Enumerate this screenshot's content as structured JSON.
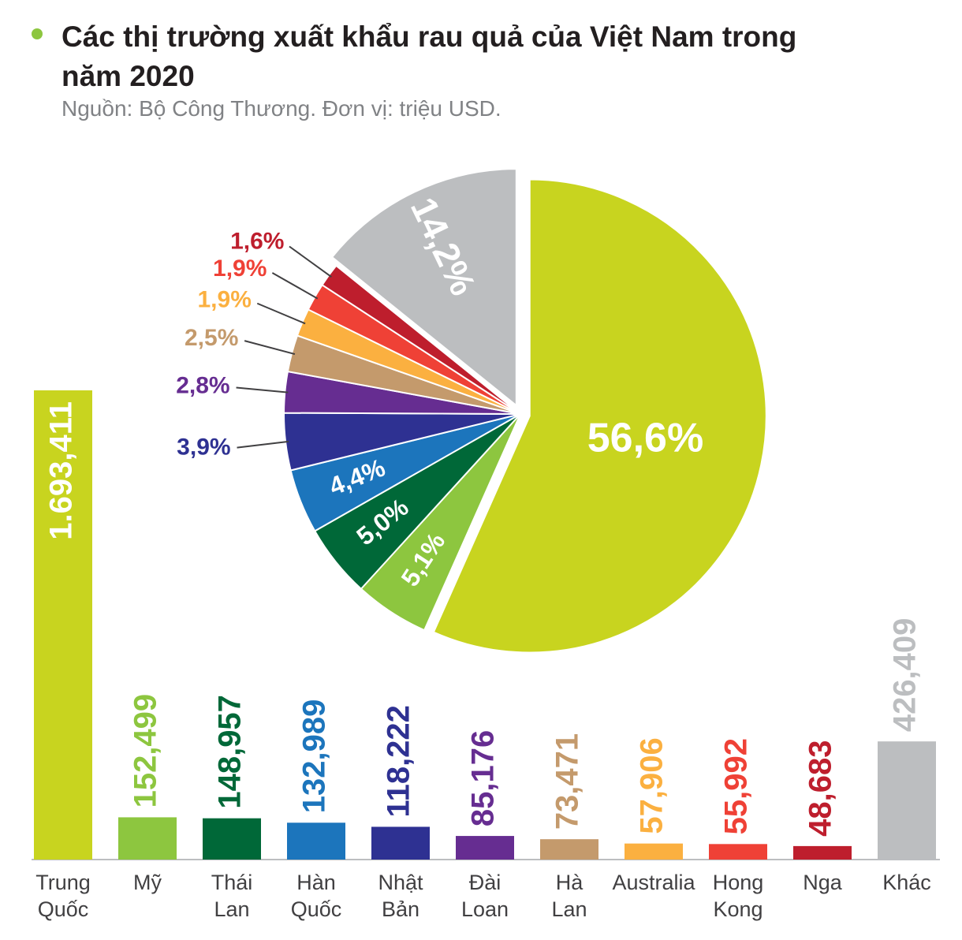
{
  "chart_data": [
    {
      "type": "bar",
      "title": "Các thị trường xuất khẩu rau quả của Việt Nam trong năm 2020",
      "subtitle": "Nguồn: Bộ Công Thương. Đơn vị: triệu USD.",
      "categories": [
        "Trung Quốc",
        "Mỹ",
        "Thái Lan",
        "Hàn Quốc",
        "Nhật Bản",
        "Đài Loan",
        "Hà Lan",
        "Australia",
        "Hong Kong",
        "Nga",
        "Khác"
      ],
      "values": [
        1693.411,
        152.499,
        148.957,
        132.989,
        118.222,
        85.176,
        73.471,
        57.906,
        55.992,
        48.683,
        426.409
      ],
      "value_labels": [
        "1.693,411",
        "152,499",
        "148,957",
        "132,989",
        "118,222",
        "85,176",
        "73,471",
        "57,906",
        "55,992",
        "48,683",
        "426,409"
      ],
      "colors": [
        "#c8d41f",
        "#8dc63f",
        "#006838",
        "#1c75bc",
        "#2e3192",
        "#662d91",
        "#c49a6c",
        "#fbb040",
        "#ef4136",
        "#be1e2d",
        "#bcbec0"
      ]
    },
    {
      "type": "pie",
      "values": [
        56.6,
        5.1,
        5.0,
        4.4,
        3.9,
        2.8,
        2.5,
        1.9,
        1.9,
        1.6,
        14.2
      ],
      "value_labels": [
        "56,6%",
        "5,1%",
        "5,0%",
        "4,4%",
        "3,9%",
        "2,8%",
        "2,5%",
        "1,9%",
        "1,9%",
        "1,6%",
        "14,2%"
      ],
      "colors": [
        "#c8d41f",
        "#8dc63f",
        "#006838",
        "#1c75bc",
        "#2e3192",
        "#662d91",
        "#c49a6c",
        "#fbb040",
        "#ef4136",
        "#be1e2d",
        "#bcbec0"
      ]
    }
  ]
}
